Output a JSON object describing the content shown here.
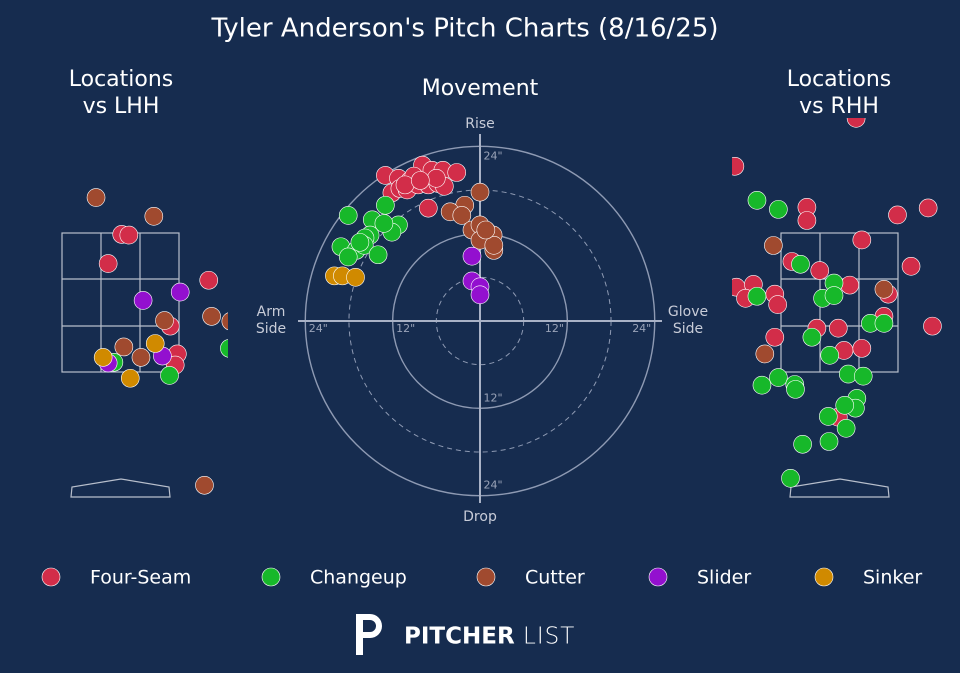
{
  "title": "Tyler Anderson's Pitch Charts (8/16/25)",
  "legend": [
    {
      "name": "Four-Seam",
      "color": "#d22d49"
    },
    {
      "name": "Changeup",
      "color": "#17b82a"
    },
    {
      "name": "Cutter",
      "color": "#a04a2f"
    },
    {
      "name": "Slider",
      "color": "#9310cf"
    },
    {
      "name": "Sinker",
      "color": "#d08a00"
    }
  ],
  "logo": {
    "bold": "PITCHER",
    "light": "LIST"
  },
  "chart_data": [
    {
      "type": "scatter",
      "title": [
        "Locations",
        "vs LHH"
      ],
      "xlim": [
        -1.5,
        1.5
      ],
      "ylim": [
        -0.5,
        5.5
      ],
      "series": [
        {
          "x": [
            0.01,
            0.11,
            -0.18,
            1.23,
            0.69,
            0.79,
            0.76
          ],
          "values": [
            3.48,
            3.47,
            3.06,
            2.82,
            2.16,
            1.76,
            1.6
          ]
        },
        {
          "x": [
            -0.1,
            0.68,
            1.52
          ],
          "values": [
            1.64,
            1.45,
            1.84
          ]
        },
        {
          "x": [
            -0.35,
            0.46,
            0.61,
            1.27,
            1.54,
            0.04,
            0.28,
            1.17
          ],
          "values": [
            4.01,
            3.74,
            2.24,
            2.3,
            2.23,
            1.86,
            1.71,
            -0.13
          ]
        },
        {
          "x": [
            0.31,
            0.83,
            0.58,
            -0.18
          ],
          "values": [
            2.53,
            2.65,
            1.73,
            1.63
          ]
        },
        {
          "x": [
            -0.25,
            0.48,
            0.13
          ],
          "values": [
            1.71,
            1.91,
            1.41
          ]
        }
      ]
    },
    {
      "type": "polar",
      "title": [
        "Movement"
      ],
      "xlim": [
        -25,
        25
      ],
      "ylim": [
        -25,
        25
      ],
      "axis_labels": {
        "top": "Rise",
        "bottom": "Drop",
        "left": [
          "Arm",
          "Side"
        ],
        "right": [
          "Glove",
          "Side"
        ]
      },
      "rings": [
        {
          "r": 6,
          "dashed": true
        },
        {
          "r": 12,
          "dashed": false
        },
        {
          "r": 18,
          "dashed": true
        },
        {
          "r": 24,
          "dashed": false
        }
      ],
      "xticks": [
        {
          "value": -24,
          "label": "24\""
        },
        {
          "value": -12,
          "label": "12\""
        },
        {
          "value": 12,
          "label": "12\""
        },
        {
          "value": 24,
          "label": "24\""
        }
      ],
      "yticks": [
        {
          "value": 24,
          "label": "24\""
        },
        {
          "value": -12,
          "label": "12\""
        },
        {
          "value": -24,
          "label": "24\""
        }
      ],
      "series": [
        {
          "x": [
            -13.0,
            -11.2,
            -9.6,
            -7.9,
            -6.6,
            -5.1,
            -3.2,
            -12.1,
            -11.0,
            -10.0,
            -8.5,
            -7.1,
            -5.8,
            -4.9,
            -9.1,
            -6.0,
            -7.1,
            -10.3,
            -8.2
          ],
          "values": [
            20.0,
            19.6,
            19.3,
            21.4,
            20.7,
            20.7,
            20.4,
            17.6,
            18.2,
            18.0,
            18.7,
            18.7,
            18.9,
            18.5,
            19.9,
            19.6,
            15.5,
            18.7,
            19.3
          ]
        },
        {
          "x": [
            -18.1,
            -14.8,
            -13.0,
            -11.2,
            -12.1,
            -15.1,
            -15.8,
            -13.2,
            -19.1,
            -17.0,
            -15.9,
            -14.0,
            -18.1,
            -16.5
          ],
          "values": [
            14.5,
            13.9,
            15.9,
            13.2,
            12.2,
            11.8,
            11.4,
            13.4,
            10.2,
            9.7,
            10.4,
            9.1,
            8.8,
            10.8
          ]
        },
        {
          "x": [
            0,
            -2.1,
            -4.1,
            -2.5,
            -1.1,
            0,
            1.8,
            1.9,
            0,
            1.9,
            0.8
          ],
          "values": [
            17.7,
            15.9,
            15.0,
            14.5,
            12.5,
            13.2,
            11.8,
            9.7,
            11.1,
            10.4,
            12.5
          ]
        },
        {
          "x": [
            -1.1,
            -1.1,
            0,
            0
          ],
          "values": [
            8.9,
            5.5,
            4.7,
            3.6
          ]
        },
        {
          "x": [
            -20.0,
            -18.9,
            -17.1
          ],
          "values": [
            6.2,
            6.2,
            6.0
          ]
        }
      ]
    },
    {
      "type": "scatter",
      "title": [
        "Locations",
        "vs RHH"
      ],
      "xlim": [
        -1.5,
        1.5
      ],
      "ylim": [
        -0.5,
        5.5
      ],
      "series": [
        {
          "x": [
            0.24,
            -1.46,
            -0.45,
            -0.45,
            0.82,
            1.25,
            0.32,
            -0.66,
            -0.27,
            1.01,
            -1.44,
            -1.2,
            -0.9,
            -0.86,
            -1.31,
            0.15,
            0.69,
            1.31,
            -0.9,
            -0.31,
            -0.01,
            0.07,
            0.32,
            0.63,
            -0.01
          ],
          "values": [
            5.15,
            4.46,
            3.87,
            3.68,
            3.76,
            3.86,
            3.4,
            3.09,
            2.96,
            3.02,
            2.72,
            2.76,
            2.62,
            2.47,
            2.56,
            2.75,
            2.62,
            2.16,
            2.0,
            2.13,
            2.13,
            1.81,
            1.84,
            2.3,
            0.85
          ]
        },
        {
          "x": [
            -1.15,
            -0.85,
            -0.54,
            -1.15,
            -0.23,
            -0.07,
            -0.07,
            0.44,
            0.63,
            -0.38,
            -0.13,
            0.13,
            0.34,
            -0.85,
            -1.08,
            -0.62,
            -0.61,
            0.25,
            0.23,
            0.08,
            -0.15,
            0.1,
            -0.51,
            -0.14,
            -0.68
          ],
          "values": [
            3.97,
            3.84,
            3.05,
            2.59,
            2.56,
            2.78,
            2.6,
            2.2,
            2.2,
            2.0,
            1.74,
            1.47,
            1.44,
            1.42,
            1.31,
            1.32,
            1.25,
            1.12,
            0.98,
            1.02,
            0.86,
            0.69,
            0.46,
            0.5,
            -0.03
          ]
        },
        {
          "x": [
            -0.92,
            0.63,
            -1.04
          ],
          "values": [
            3.32,
            2.69,
            1.76
          ]
        },
        {
          "x": [],
          "values": []
        },
        {
          "x": [],
          "values": []
        }
      ]
    }
  ]
}
